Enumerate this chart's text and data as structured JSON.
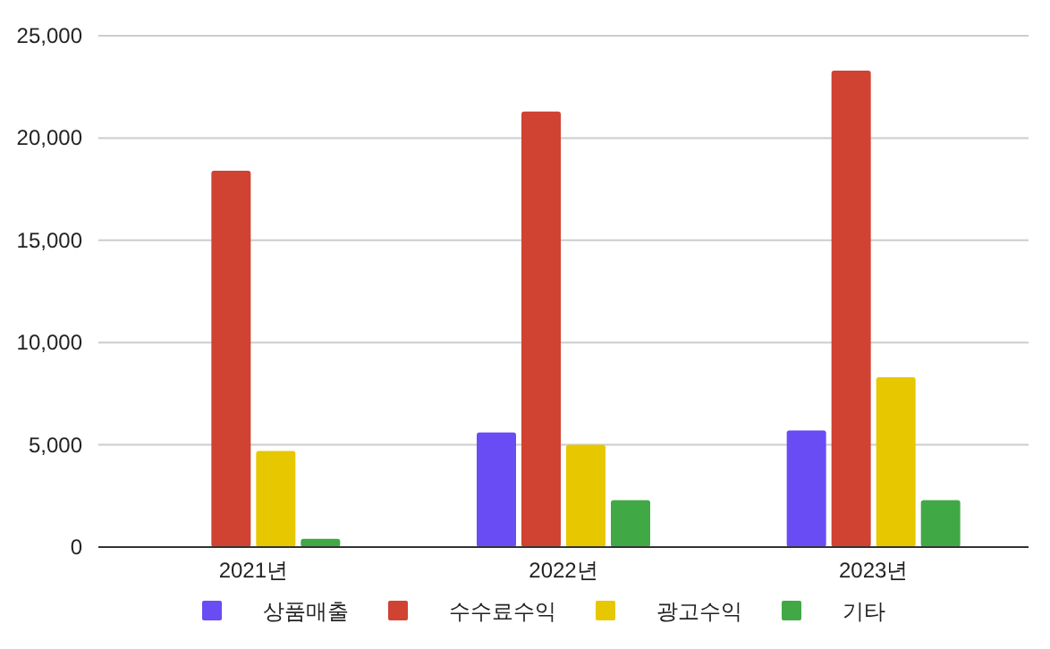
{
  "chart_data": {
    "type": "bar",
    "categories": [
      "2021년",
      "2022년",
      "2023년"
    ],
    "series": [
      {
        "name": "상품매출",
        "color": "#6a4cf5",
        "values": [
          null,
          5600,
          5700
        ]
      },
      {
        "name": "수수료수익",
        "color": "#d04232",
        "values": [
          18400,
          21300,
          23300
        ]
      },
      {
        "name": "광고수익",
        "color": "#e6c700",
        "values": [
          4700,
          5000,
          8300
        ]
      },
      {
        "name": "기타",
        "color": "#41a846",
        "values": [
          400,
          2300,
          2300
        ]
      }
    ],
    "ylim": [
      0,
      25000
    ],
    "yticks": [
      {
        "value": 0,
        "label": "0"
      },
      {
        "value": 5000,
        "label": "5,000"
      },
      {
        "value": 10000,
        "label": "10,000"
      },
      {
        "value": 15000,
        "label": "15,000"
      },
      {
        "value": 20000,
        "label": "20,000"
      },
      {
        "value": 25000,
        "label": "25,000"
      }
    ],
    "grid": "y",
    "legend": "bottom"
  }
}
